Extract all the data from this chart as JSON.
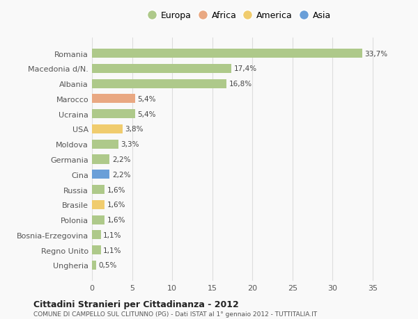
{
  "countries": [
    "Romania",
    "Macedonia d/N.",
    "Albania",
    "Marocco",
    "Ucraina",
    "USA",
    "Moldova",
    "Germania",
    "Cina",
    "Russia",
    "Brasile",
    "Polonia",
    "Bosnia-Erzegovina",
    "Regno Unito",
    "Ungheria"
  ],
  "values": [
    33.7,
    17.4,
    16.8,
    5.4,
    5.4,
    3.8,
    3.3,
    2.2,
    2.2,
    1.6,
    1.6,
    1.6,
    1.1,
    1.1,
    0.5
  ],
  "labels": [
    "33,7%",
    "17,4%",
    "16,8%",
    "5,4%",
    "5,4%",
    "3,8%",
    "3,3%",
    "2,2%",
    "2,2%",
    "1,6%",
    "1,6%",
    "1,6%",
    "1,1%",
    "1,1%",
    "0,5%"
  ],
  "categories": [
    "Europa",
    "Europa",
    "Europa",
    "Africa",
    "Europa",
    "America",
    "Europa",
    "Europa",
    "Asia",
    "Europa",
    "America",
    "Europa",
    "Europa",
    "Europa",
    "Europa"
  ],
  "colors": {
    "Europa": "#aec98a",
    "Africa": "#e9a882",
    "America": "#f0cc6e",
    "Asia": "#6a9fd8"
  },
  "legend_order": [
    "Europa",
    "Africa",
    "America",
    "Asia"
  ],
  "title1": "Cittadini Stranieri per Cittadinanza - 2012",
  "title2": "COMUNE DI CAMPELLO SUL CLITUNNO (PG) - Dati ISTAT al 1° gennaio 2012 - TUTTITALIA.IT",
  "xlim": [
    0,
    37
  ],
  "xticks": [
    0,
    5,
    10,
    15,
    20,
    25,
    30,
    35
  ],
  "bg_color": "#f9f9f9",
  "grid_color": "#dddddd"
}
